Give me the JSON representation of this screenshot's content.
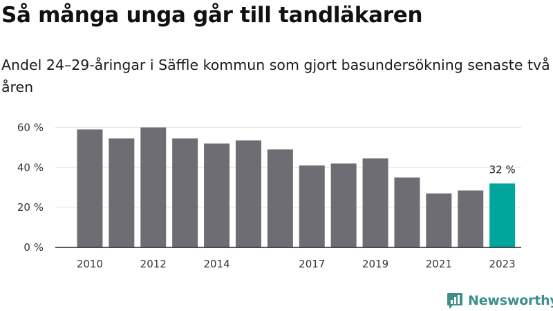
{
  "title": "Så många unga går till tandläkaren",
  "subtitle": "Andel 24–29-åringar i Säffle kommun som gjort basundersökning senaste två åren",
  "brand": "Newsworthy",
  "colors": {
    "bar": "#6e6d73",
    "highlight": "#00a59b",
    "axis": "#222222",
    "grid": "#e6e6e6",
    "brand": "#3e8f8a"
  },
  "chart_data": {
    "type": "bar",
    "categories": [
      "2010",
      "2011",
      "2012",
      "2013",
      "2014",
      "2015",
      "2016",
      "2017",
      "2018",
      "2019",
      "2020",
      "2021",
      "2022",
      "2023"
    ],
    "values": [
      59,
      54.5,
      60,
      54.5,
      52,
      53.5,
      49,
      41,
      42,
      44.5,
      35,
      27,
      28.5,
      32
    ],
    "x_tick_labels": [
      "2010",
      "2012",
      "2014",
      "2017",
      "2019",
      "2021",
      "2023"
    ],
    "y_ticks": [
      0,
      20,
      40,
      60
    ],
    "y_tick_labels": [
      "0 %",
      "20 %",
      "40 %",
      "60 %"
    ],
    "ylim": [
      0,
      65
    ],
    "grid": "horizontal",
    "highlight_category": "2023",
    "data_labels": [
      {
        "category": "2023",
        "text": "32 %"
      }
    ]
  }
}
